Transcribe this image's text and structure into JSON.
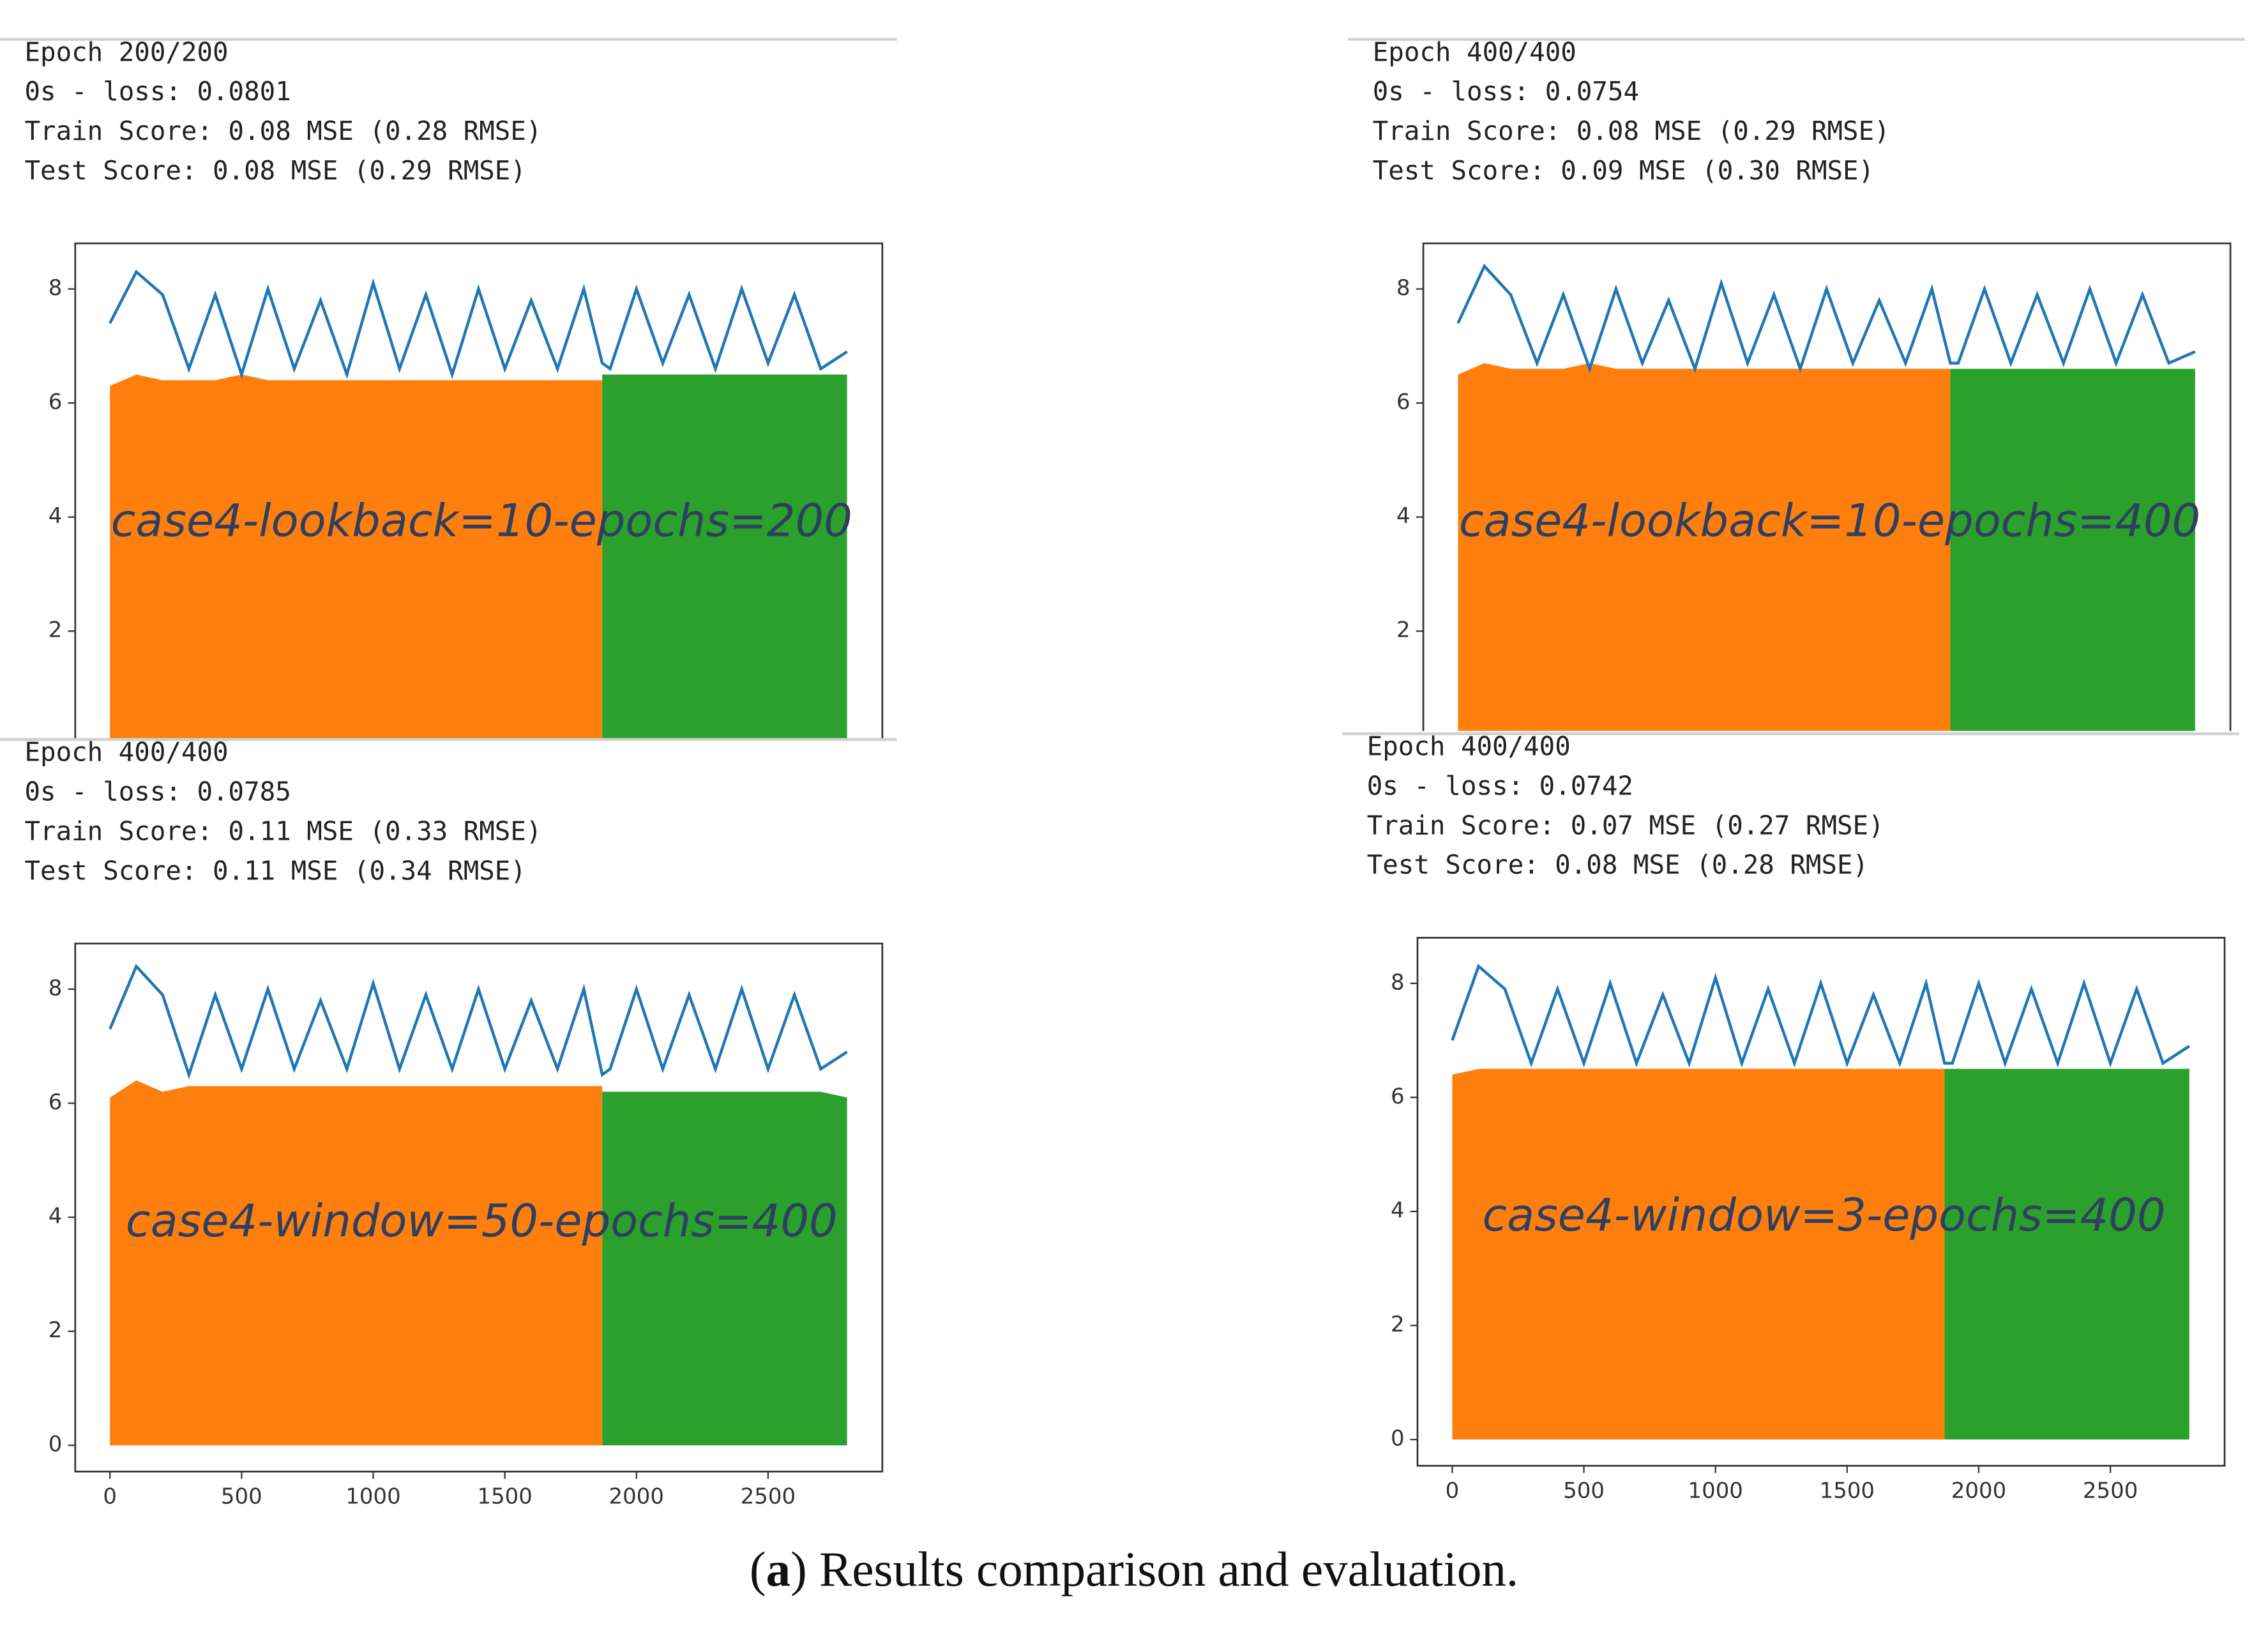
{
  "chart_data": [
    {
      "type": "line",
      "console": [
        "Epoch 200/200",
        "0s - loss: 0.0801",
        "Train Score: 0.08 MSE (0.28 RMSE)",
        "Test Score: 0.08 MSE (0.29 RMSE)"
      ],
      "annotation": "case4-lookback=10-epochs=200",
      "x": [
        0,
        100,
        200,
        300,
        400,
        500,
        600,
        700,
        800,
        900,
        1000,
        1100,
        1200,
        1300,
        1400,
        1500,
        1600,
        1700,
        1800,
        1870,
        1900,
        2000,
        2100,
        2200,
        2300,
        2400,
        2500,
        2600,
        2700,
        2800
      ],
      "xlim": [
        -132,
        2934
      ],
      "ylim": [
        -0.46,
        8.8
      ],
      "yticks": [
        2,
        4,
        6,
        8
      ],
      "series": [
        {
          "color": "#ff7f0e",
          "values": [
            6.3,
            6.5,
            6.4,
            6.4,
            6.4,
            6.5,
            6.4,
            6.4,
            6.4,
            6.4,
            6.4,
            6.4,
            6.4,
            6.4,
            6.4,
            6.4,
            6.4,
            6.4,
            6.4,
            6.4,
            null,
            null,
            null,
            null,
            null,
            null,
            null,
            null,
            null,
            null
          ]
        },
        {
          "color": "#2ca02c",
          "values": [
            null,
            null,
            null,
            null,
            null,
            null,
            null,
            null,
            null,
            null,
            null,
            null,
            null,
            null,
            null,
            null,
            null,
            null,
            null,
            6.5,
            6.5,
            6.5,
            6.5,
            6.5,
            6.5,
            6.5,
            6.5,
            6.5,
            6.5,
            6.5
          ]
        },
        {
          "color": "#1f77b4",
          "values": [
            7.4,
            8.3,
            7.9,
            6.6,
            7.9,
            6.5,
            8.0,
            6.6,
            7.8,
            6.5,
            8.1,
            6.6,
            7.9,
            6.5,
            8.0,
            6.6,
            7.8,
            6.6,
            8.0,
            6.7,
            6.6,
            8.0,
            6.7,
            7.9,
            6.6,
            8.0,
            6.7,
            7.9,
            6.6,
            6.9
          ]
        }
      ]
    },
    {
      "type": "line",
      "console": [
        "Epoch 400/400",
        "0s - loss: 0.0754",
        "Train Score: 0.08 MSE (0.29 RMSE)",
        "Test Score: 0.09 MSE (0.30 RMSE)"
      ],
      "annotation": "case4-lookback=10-epochs=400",
      "x": [
        0,
        100,
        200,
        300,
        400,
        500,
        600,
        700,
        800,
        900,
        1000,
        1100,
        1200,
        1300,
        1400,
        1500,
        1600,
        1700,
        1800,
        1870,
        1900,
        2000,
        2100,
        2200,
        2300,
        2400,
        2500,
        2600,
        2700,
        2800
      ],
      "xlim": [
        -132,
        2934
      ],
      "ylim": [
        -0.46,
        8.8
      ],
      "yticks": [
        2,
        4,
        6,
        8
      ],
      "series": [
        {
          "color": "#ff7f0e",
          "values": [
            6.5,
            6.7,
            6.6,
            6.6,
            6.6,
            6.7,
            6.6,
            6.6,
            6.6,
            6.6,
            6.6,
            6.6,
            6.6,
            6.6,
            6.6,
            6.6,
            6.6,
            6.6,
            6.6,
            6.6,
            null,
            null,
            null,
            null,
            null,
            null,
            null,
            null,
            null,
            null
          ]
        },
        {
          "color": "#2ca02c",
          "values": [
            null,
            null,
            null,
            null,
            null,
            null,
            null,
            null,
            null,
            null,
            null,
            null,
            null,
            null,
            null,
            null,
            null,
            null,
            null,
            6.6,
            6.6,
            6.6,
            6.6,
            6.6,
            6.6,
            6.6,
            6.6,
            6.6,
            6.6,
            6.6
          ]
        },
        {
          "color": "#1f77b4",
          "values": [
            7.4,
            8.4,
            7.9,
            6.7,
            7.9,
            6.6,
            8.0,
            6.7,
            7.8,
            6.6,
            8.1,
            6.7,
            7.9,
            6.6,
            8.0,
            6.7,
            7.8,
            6.7,
            8.0,
            6.7,
            6.7,
            8.0,
            6.7,
            7.9,
            6.7,
            8.0,
            6.7,
            7.9,
            6.7,
            6.9
          ]
        }
      ]
    },
    {
      "type": "line",
      "console": [
        "Epoch 400/400",
        "0s - loss: 0.0785",
        "Train Score: 0.11 MSE (0.33 RMSE)",
        "Test Score: 0.11 MSE (0.34 RMSE)"
      ],
      "annotation": "case4-window=50-epochs=400",
      "x": [
        0,
        100,
        200,
        300,
        400,
        500,
        600,
        700,
        800,
        900,
        1000,
        1100,
        1200,
        1300,
        1400,
        1500,
        1600,
        1700,
        1800,
        1870,
        1900,
        2000,
        2100,
        2200,
        2300,
        2400,
        2500,
        2600,
        2700,
        2800
      ],
      "xlim": [
        -132,
        2934
      ],
      "ylim": [
        -0.46,
        8.8
      ],
      "yticks": [
        0,
        2,
        4,
        6,
        8
      ],
      "xticks": [
        0,
        500,
        1000,
        1500,
        2000,
        2500
      ],
      "series": [
        {
          "color": "#ff7f0e",
          "values": [
            6.1,
            6.4,
            6.2,
            6.3,
            6.3,
            6.3,
            6.3,
            6.3,
            6.3,
            6.3,
            6.3,
            6.3,
            6.3,
            6.3,
            6.3,
            6.3,
            6.3,
            6.3,
            6.3,
            6.3,
            null,
            null,
            null,
            null,
            null,
            null,
            null,
            null,
            null,
            null
          ]
        },
        {
          "color": "#2ca02c",
          "values": [
            null,
            null,
            null,
            null,
            null,
            null,
            null,
            null,
            null,
            null,
            null,
            null,
            null,
            null,
            null,
            null,
            null,
            null,
            null,
            6.2,
            6.2,
            6.2,
            6.2,
            6.2,
            6.2,
            6.2,
            6.2,
            6.2,
            6.2,
            6.1
          ]
        },
        {
          "color": "#1f77b4",
          "values": [
            7.3,
            8.4,
            7.9,
            6.5,
            7.9,
            6.6,
            8.0,
            6.6,
            7.8,
            6.6,
            8.1,
            6.6,
            7.9,
            6.6,
            8.0,
            6.6,
            7.8,
            6.6,
            8.0,
            6.5,
            6.6,
            8.0,
            6.6,
            7.9,
            6.6,
            8.0,
            6.6,
            7.9,
            6.6,
            6.9
          ]
        }
      ]
    },
    {
      "type": "line",
      "console": [
        "Epoch 400/400",
        "0s - loss: 0.0742",
        "Train Score: 0.07 MSE (0.27 RMSE)",
        "Test Score: 0.08 MSE (0.28 RMSE)"
      ],
      "annotation": "case4-window=3-epochs=400",
      "x": [
        0,
        100,
        200,
        300,
        400,
        500,
        600,
        700,
        800,
        900,
        1000,
        1100,
        1200,
        1300,
        1400,
        1500,
        1600,
        1700,
        1800,
        1870,
        1900,
        2000,
        2100,
        2200,
        2300,
        2400,
        2500,
        2600,
        2700,
        2800
      ],
      "xlim": [
        -132,
        2934
      ],
      "ylim": [
        -0.46,
        8.8
      ],
      "yticks": [
        0,
        2,
        4,
        6,
        8
      ],
      "xticks": [
        0,
        500,
        1000,
        1500,
        2000,
        2500
      ],
      "series": [
        {
          "color": "#ff7f0e",
          "values": [
            6.4,
            6.5,
            6.5,
            6.5,
            6.5,
            6.5,
            6.5,
            6.5,
            6.5,
            6.5,
            6.5,
            6.5,
            6.5,
            6.5,
            6.5,
            6.5,
            6.5,
            6.5,
            6.5,
            6.5,
            null,
            null,
            null,
            null,
            null,
            null,
            null,
            null,
            null,
            null
          ]
        },
        {
          "color": "#2ca02c",
          "values": [
            null,
            null,
            null,
            null,
            null,
            null,
            null,
            null,
            null,
            null,
            null,
            null,
            null,
            null,
            null,
            null,
            null,
            null,
            null,
            6.5,
            6.5,
            6.5,
            6.5,
            6.5,
            6.5,
            6.5,
            6.5,
            6.5,
            6.5,
            6.5
          ]
        },
        {
          "color": "#1f77b4",
          "values": [
            7.0,
            8.3,
            7.9,
            6.6,
            7.9,
            6.6,
            8.0,
            6.6,
            7.8,
            6.6,
            8.1,
            6.6,
            7.9,
            6.6,
            8.0,
            6.6,
            7.8,
            6.6,
            8.0,
            6.6,
            6.6,
            8.0,
            6.6,
            7.9,
            6.6,
            8.0,
            6.6,
            7.9,
            6.6,
            6.9
          ]
        }
      ]
    }
  ],
  "caption": [
    "(",
    "a",
    ") Results comparison and evaluation."
  ]
}
